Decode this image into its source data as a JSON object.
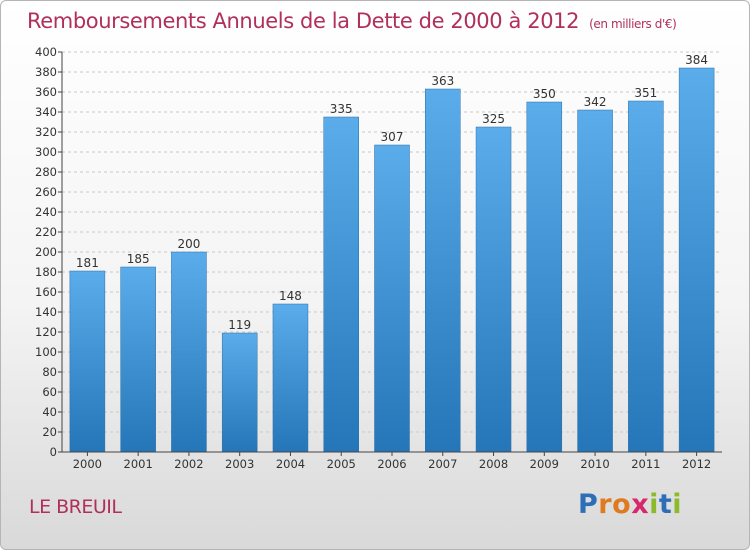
{
  "title": "Remboursements Annuels de la Dette de 2000 à 2012",
  "unit_note": "(en milliers d'€)",
  "place": "LE BREUIL",
  "logo": {
    "text": "Proxiti",
    "letters": [
      {
        "ch": "P",
        "color": "#2d6fb7"
      },
      {
        "ch": "r",
        "color": "#e07a1e"
      },
      {
        "ch": "o",
        "color": "#e07a1e"
      },
      {
        "ch": "x",
        "color": "#d7286c"
      },
      {
        "ch": "i",
        "color": "#8bbb2a"
      },
      {
        "ch": "t",
        "color": "#2d6fb7"
      },
      {
        "ch": "i",
        "color": "#8bbb2a"
      }
    ]
  },
  "colors": {
    "title": "#b0305a",
    "bar_top": "#5aacea",
    "bar_bottom": "#2576b8",
    "grid": "#c9c9c9",
    "axis": "#444444"
  },
  "chart_data": {
    "type": "bar",
    "categories": [
      "2000",
      "2001",
      "2002",
      "2003",
      "2004",
      "2005",
      "2006",
      "2007",
      "2008",
      "2009",
      "2010",
      "2011",
      "2012"
    ],
    "values": [
      181,
      185,
      200,
      119,
      148,
      335,
      307,
      363,
      325,
      350,
      342,
      351,
      384
    ],
    "ylim": [
      0,
      400
    ],
    "ytick_step": 20,
    "grid": "horizontal dashed",
    "legend": "none"
  }
}
